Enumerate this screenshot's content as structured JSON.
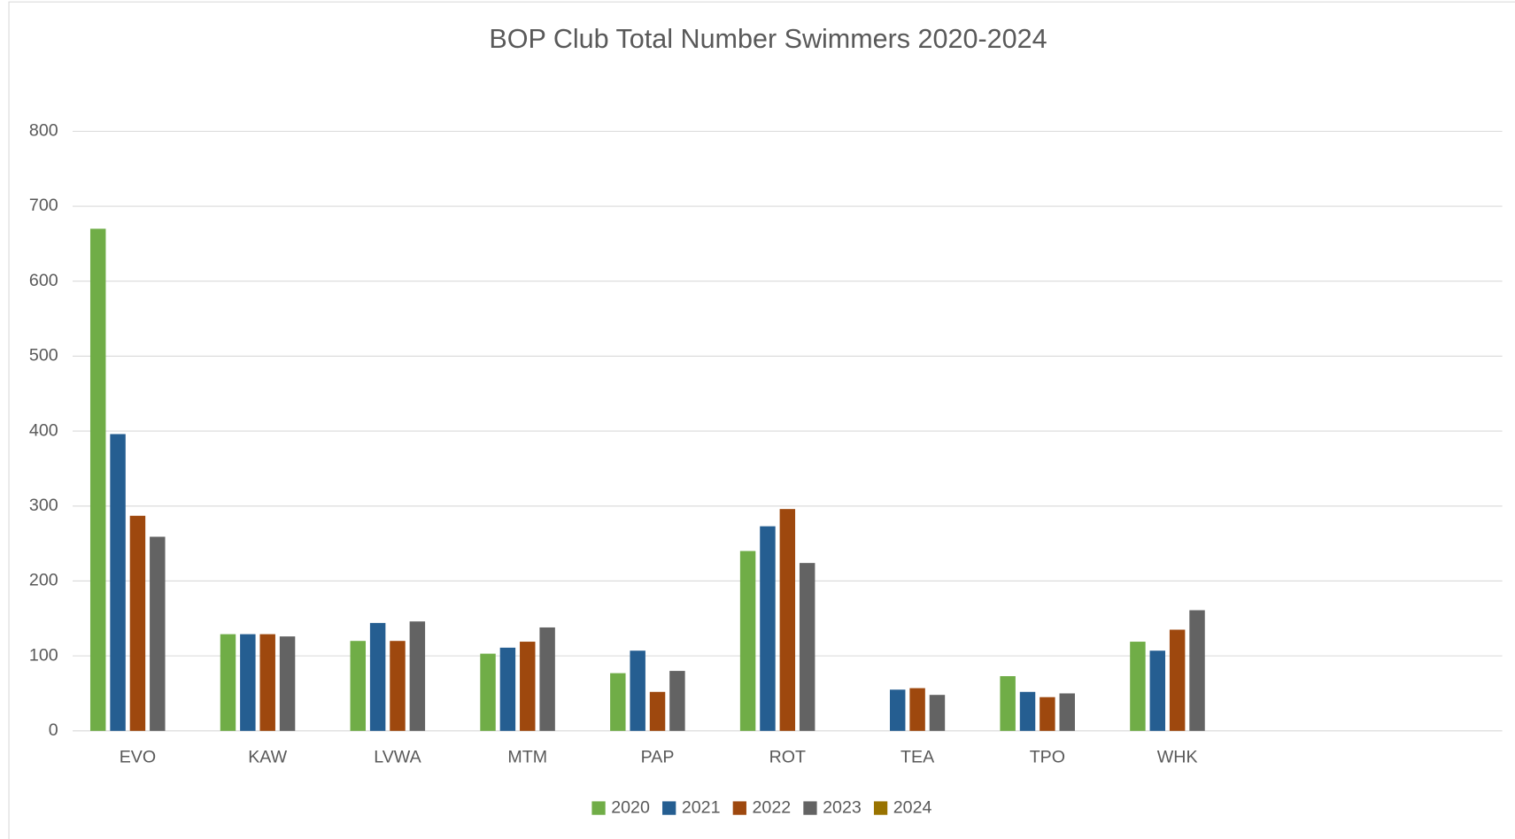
{
  "chart_data": {
    "type": "bar",
    "title": "BOP Club Total Number Swimmers 2020-2024",
    "categories": [
      "EVO",
      "KAW",
      "LVWA",
      "MTM",
      "PAP",
      "ROT",
      "TEA",
      "TPO",
      "WHK",
      null,
      null
    ],
    "series": [
      {
        "name": "2020",
        "color": "#70ad47",
        "values": [
          670,
          129,
          120,
          103,
          77,
          240,
          null,
          73,
          119,
          null,
          null
        ]
      },
      {
        "name": "2021",
        "color": "#255e91",
        "values": [
          396,
          129,
          144,
          111,
          107,
          273,
          55,
          52,
          107,
          null,
          null
        ]
      },
      {
        "name": "2022",
        "color": "#9e480e",
        "values": [
          287,
          129,
          120,
          119,
          52,
          296,
          57,
          45,
          135,
          null,
          null
        ]
      },
      {
        "name": "2023",
        "color": "#636363",
        "values": [
          259,
          126,
          146,
          138,
          80,
          224,
          48,
          50,
          161,
          null,
          null
        ]
      },
      {
        "name": "2024",
        "color": "#997300",
        "values": [
          null,
          null,
          null,
          null,
          null,
          null,
          null,
          null,
          null,
          null,
          null
        ]
      }
    ],
    "ylim": [
      0,
      800
    ],
    "yticks": [
      0,
      100,
      200,
      300,
      400,
      500,
      600,
      700,
      800
    ],
    "grid": true,
    "legend": "bottom"
  }
}
